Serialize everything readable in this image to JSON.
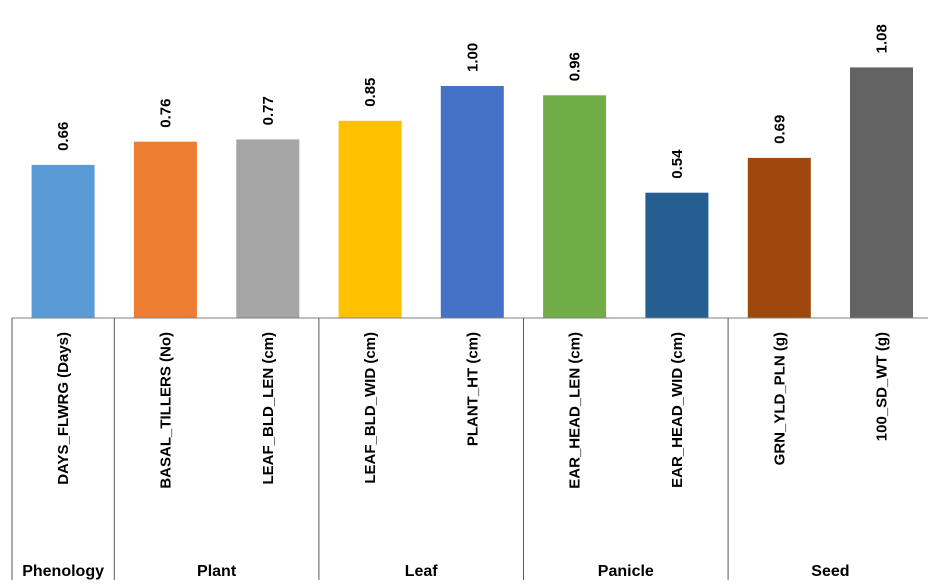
{
  "chart_data": {
    "type": "bar",
    "title": "",
    "xlabel": "",
    "ylabel": "",
    "ylim": [
      0,
      1.1
    ],
    "grid": false,
    "legend": "none",
    "categories": [
      "DAYS_FLWRG (Days)",
      "BASAL_TILLERS (No)",
      "LEAF_BLD_LEN (cm)",
      "LEAF_BLD_WID (cm)",
      "PLANT_HT (cm)",
      "EAR_HEAD_LEN (cm)",
      "EAR_HEAD_WID (cm)",
      "GRN_YLD_PLN (g)",
      "100_SD_WT (g)"
    ],
    "values": [
      0.66,
      0.76,
      0.77,
      0.85,
      1.0,
      0.96,
      0.54,
      0.69,
      1.08
    ],
    "value_labels": [
      "0.66",
      "0.76",
      "0.77",
      "0.85",
      "1.00",
      "0.96",
      "0.54",
      "0.69",
      "1.08"
    ],
    "colors": [
      "#5b9bd5",
      "#ed7d31",
      "#a5a5a5",
      "#ffc000",
      "#4472c4",
      "#70ad47",
      "#255e91",
      "#9e480e",
      "#636363"
    ],
    "groups": [
      {
        "label": "Phenology",
        "count": 1
      },
      {
        "label": "Plant",
        "count": 2
      },
      {
        "label": "Leaf",
        "count": 2
      },
      {
        "label": "Panicle",
        "count": 2
      },
      {
        "label": "Seed",
        "count": 2
      }
    ]
  }
}
